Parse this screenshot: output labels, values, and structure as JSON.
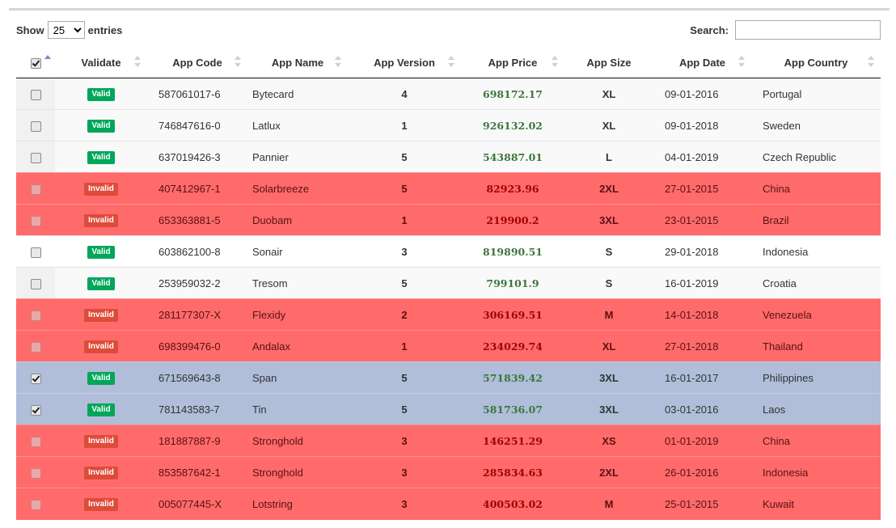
{
  "controls": {
    "show_label": "Show",
    "entries_label": "entries",
    "length_selected": "25",
    "search_label": "Search:",
    "search_value": ""
  },
  "columns": [
    "Validate",
    "App Code",
    "App Name",
    "App Version",
    "App Price",
    "App Size",
    "App Date",
    "App Country"
  ],
  "rows": [
    {
      "checked": false,
      "status": "Valid",
      "code": "587061017-6",
      "name": "Bytecard",
      "version": "4",
      "price": "698172.17",
      "size": "XL",
      "date": "09-01-2016",
      "country": "Portugal"
    },
    {
      "checked": false,
      "status": "Valid",
      "code": "746847616-0",
      "name": "Latlux",
      "version": "1",
      "price": "926132.02",
      "size": "XL",
      "date": "09-01-2018",
      "country": "Sweden"
    },
    {
      "checked": false,
      "status": "Valid",
      "code": "637019426-3",
      "name": "Pannier",
      "version": "5",
      "price": "543887.01",
      "size": "L",
      "date": "04-01-2019",
      "country": "Czech Republic"
    },
    {
      "checked": false,
      "status": "Invalid",
      "code": "407412967-1",
      "name": "Solarbreeze",
      "version": "5",
      "price": "82923.96",
      "size": "2XL",
      "date": "27-01-2015",
      "country": "China"
    },
    {
      "checked": false,
      "status": "Invalid",
      "code": "653363881-5",
      "name": "Duobam",
      "version": "1",
      "price": "219900.2",
      "size": "3XL",
      "date": "23-01-2015",
      "country": "Brazil"
    },
    {
      "checked": false,
      "status": "Valid",
      "code": "603862100-8",
      "name": "Sonair",
      "version": "3",
      "price": "819890.51",
      "size": "S",
      "date": "29-01-2018",
      "country": "Indonesia"
    },
    {
      "checked": false,
      "status": "Valid",
      "code": "253959032-2",
      "name": "Tresom",
      "version": "5",
      "price": "799101.9",
      "size": "S",
      "date": "16-01-2019",
      "country": "Croatia"
    },
    {
      "checked": false,
      "status": "Invalid",
      "code": "281177307-X",
      "name": "Flexidy",
      "version": "2",
      "price": "306169.51",
      "size": "M",
      "date": "14-01-2018",
      "country": "Venezuela"
    },
    {
      "checked": false,
      "status": "Invalid",
      "code": "698399476-0",
      "name": "Andalax",
      "version": "1",
      "price": "234029.74",
      "size": "XL",
      "date": "27-01-2018",
      "country": "Thailand"
    },
    {
      "checked": true,
      "status": "Valid",
      "code": "671569643-8",
      "name": "Span",
      "version": "5",
      "price": "571839.42",
      "size": "3XL",
      "date": "16-01-2017",
      "country": "Philippines"
    },
    {
      "checked": true,
      "status": "Valid",
      "code": "781143583-7",
      "name": "Tin",
      "version": "5",
      "price": "581736.07",
      "size": "3XL",
      "date": "03-01-2016",
      "country": "Laos"
    },
    {
      "checked": false,
      "status": "Invalid",
      "code": "181887887-9",
      "name": "Stronghold",
      "version": "3",
      "price": "146251.29",
      "size": "XS",
      "date": "01-01-2019",
      "country": "China"
    },
    {
      "checked": false,
      "status": "Invalid",
      "code": "853587642-1",
      "name": "Stronghold",
      "version": "3",
      "price": "285834.63",
      "size": "2XL",
      "date": "26-01-2016",
      "country": "Indonesia"
    },
    {
      "checked": false,
      "status": "Invalid",
      "code": "005077445-X",
      "name": "Lotstring",
      "version": "3",
      "price": "400503.02",
      "size": "M",
      "date": "25-01-2015",
      "country": "Kuwait"
    }
  ],
  "colors": {
    "valid_badge": "#00a65a",
    "invalid_badge": "#dd4b39",
    "invalid_row": "#ff6b6b",
    "selected_row": "#b0bed9",
    "price_positive": "#3c763d",
    "price_negative": "#a10000"
  }
}
